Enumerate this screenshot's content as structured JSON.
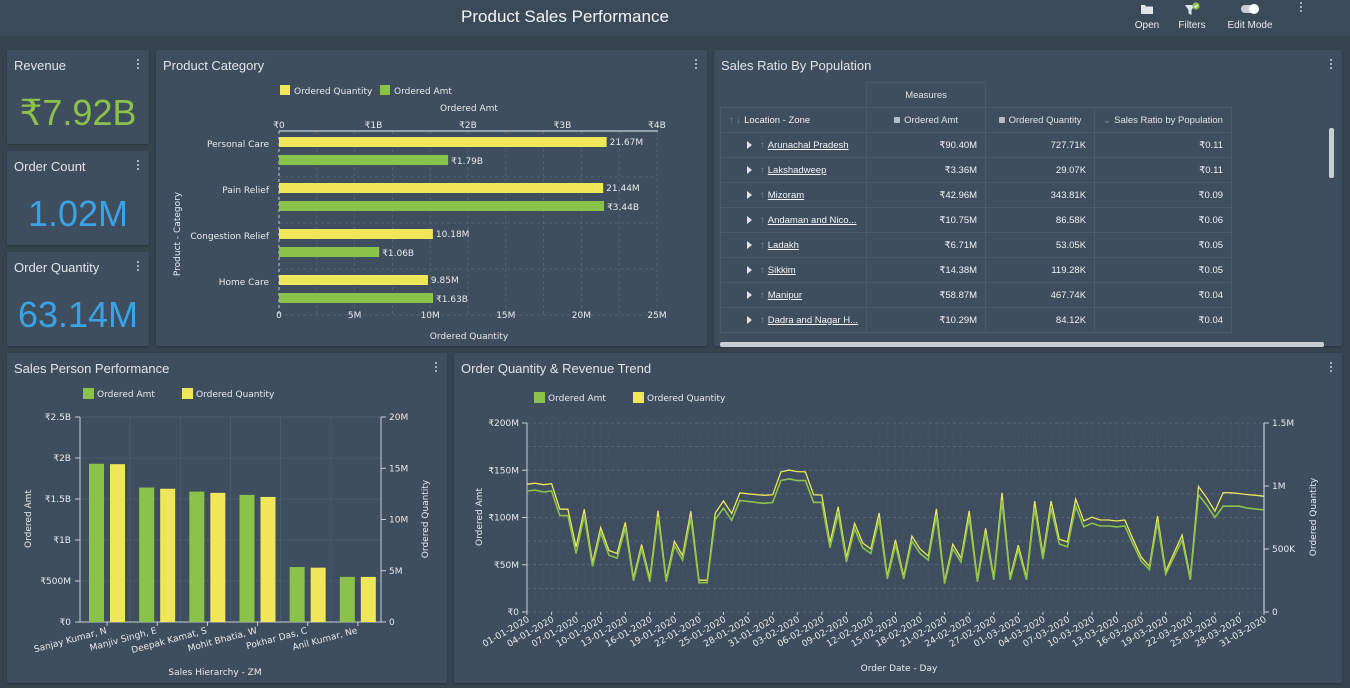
{
  "app": {
    "title": "Product Sales Performance",
    "toolbar": {
      "open_label": "Open",
      "filters_label": "Filters",
      "edit_mode_label": "Edit Mode",
      "edit_mode_on": true
    }
  },
  "colors": {
    "green": "#8bc34a",
    "yellow": "#f0e65a",
    "kpi_green": "#8bc34a",
    "kpi_blue": "#3aa3e6"
  },
  "kpis": [
    {
      "title": "Revenue",
      "value": "₹7.92B",
      "color": "green"
    },
    {
      "title": "Order Count",
      "value": "1.02M",
      "color": "blue"
    },
    {
      "title": "Order Quantity",
      "value": "63.14M",
      "color": "blue"
    }
  ],
  "product_category": {
    "title": "Product Category",
    "legend": [
      "Ordered Quantity",
      "Ordered Amt"
    ],
    "top_axis_title": "Ordered Amt",
    "top_ticks": [
      "₹0",
      "₹1B",
      "₹2B",
      "₹3B",
      "₹4B"
    ],
    "bottom_axis_title": "Ordered Quantity",
    "bottom_ticks": [
      "0",
      "5M",
      "10M",
      "15M",
      "20M",
      "25M"
    ],
    "y_axis_title": "Product - Category"
  },
  "sales_ratio": {
    "title": "Sales Ratio By Population",
    "measures_label": "Measures",
    "columns": [
      "Location - Zone",
      "Ordered Amt",
      "Ordered Quantity",
      "Sales Ratio by Population"
    ],
    "rows": [
      {
        "zone": "Arunachal Pradesh",
        "amt": "₹90.40M",
        "qty": "727.71K",
        "ratio": "₹0.11"
      },
      {
        "zone": "Lakshadweep",
        "amt": "₹3.36M",
        "qty": "29.07K",
        "ratio": "₹0.11"
      },
      {
        "zone": "Mizoram",
        "amt": "₹42.96M",
        "qty": "343.81K",
        "ratio": "₹0.09"
      },
      {
        "zone": "Andaman and Nico...",
        "amt": "₹10.75M",
        "qty": "86.58K",
        "ratio": "₹0.06"
      },
      {
        "zone": "Ladakh",
        "amt": "₹6.71M",
        "qty": "53.05K",
        "ratio": "₹0.05"
      },
      {
        "zone": "Sikkim",
        "amt": "₹14.38M",
        "qty": "119.28K",
        "ratio": "₹0.05"
      },
      {
        "zone": "Manipur",
        "amt": "₹58.87M",
        "qty": "467.74K",
        "ratio": "₹0.04"
      },
      {
        "zone": "Dadra and Nagar H...",
        "amt": "₹10.29M",
        "qty": "84.12K",
        "ratio": "₹0.04"
      }
    ]
  },
  "sales_person": {
    "title": "Sales Person Performance",
    "legend": [
      "Ordered Amt",
      "Ordered Quantity"
    ],
    "left_ticks": [
      "₹0",
      "₹500M",
      "₹1B",
      "₹1.5B",
      "₹2B",
      "₹2.5B"
    ],
    "right_ticks": [
      "0",
      "5M",
      "10M",
      "15M",
      "20M"
    ],
    "left_axis_title": "Ordered Amt",
    "right_axis_title": "Ordered Quantity",
    "x_axis_title": "Sales Hierarchy - ZM"
  },
  "trend": {
    "title": "Order Quantity & Revenue Trend",
    "legend": [
      "Ordered Amt",
      "Ordered Quantity"
    ],
    "left_ticks": [
      "₹0",
      "₹50M",
      "₹100M",
      "₹150M",
      "₹200M"
    ],
    "right_ticks": [
      "0",
      "500K",
      "1M",
      "1.5M"
    ],
    "left_axis_title": "Ordered Amt",
    "right_axis_title": "Ordered Quantity",
    "x_axis_title": "Order Date - Day"
  },
  "chart_data": [
    {
      "type": "bar",
      "orientation": "horizontal",
      "title": "Product Category",
      "categories": [
        "Personal Care",
        "Pain Relief",
        "Congestion Relief",
        "Home Care"
      ],
      "series": [
        {
          "name": "Ordered Quantity",
          "axis": "bottom",
          "values": [
            21670000,
            21440000,
            10180000,
            9850000
          ],
          "labels": [
            "21.67M",
            "21.44M",
            "10.18M",
            "9.85M"
          ]
        },
        {
          "name": "Ordered Amt",
          "axis": "top",
          "values": [
            1790000000,
            3440000000,
            1060000000,
            1630000000
          ],
          "labels": [
            "₹1.79B",
            "₹3.44B",
            "₹1.06B",
            "₹1.63B"
          ]
        }
      ],
      "xlim_bottom": [
        0,
        25000000
      ],
      "xlim_top": [
        0,
        4000000000
      ],
      "xlabel": "Ordered Quantity",
      "xlabel_top": "Ordered Amt",
      "ylabel": "Product - Category",
      "legend": "top",
      "grid": true
    },
    {
      "type": "bar",
      "title": "Sales Person Performance",
      "categories": [
        "Sanjay Kumar, N",
        "Manjiv Singh, E",
        "Deepak Kamat, S",
        "Mohit Bhatia, W",
        "Pokhar Das, C",
        "Anil Kumar, Ne"
      ],
      "series": [
        {
          "name": "Ordered Amt",
          "axis": "left",
          "values": [
            1930000000,
            1640000000,
            1590000000,
            1550000000,
            670000000,
            550000000
          ]
        },
        {
          "name": "Ordered Quantity",
          "axis": "right",
          "values": [
            15400000,
            13000000,
            12600000,
            12200000,
            5300000,
            4400000
          ]
        }
      ],
      "ylim_left": [
        0,
        2500000000
      ],
      "ylim_right": [
        0,
        20000000
      ],
      "xlabel": "Sales Hierarchy - ZM",
      "ylabel": "Ordered Amt",
      "ylabel_right": "Ordered Quantity",
      "legend": "top",
      "grid": true
    },
    {
      "type": "line",
      "title": "Order Quantity & Revenue Trend",
      "x_start": "01-01-2020",
      "x_end": "31-03-2020",
      "x_tick_labels": [
        "01-01-2020",
        "04-01-2020",
        "07-01-2020",
        "10-01-2020",
        "13-01-2020",
        "16-01-2020",
        "19-01-2020",
        "22-01-2020",
        "25-01-2020",
        "28-01-2020",
        "31-01-2020",
        "03-02-2020",
        "06-02-2020",
        "09-02-2020",
        "12-02-2020",
        "15-02-2020",
        "18-02-2020",
        "21-02-2020",
        "24-02-2020",
        "27-02-2020",
        "01-03-2020",
        "04-03-2020",
        "07-03-2020",
        "10-03-2020",
        "13-03-2020",
        "16-03-2020",
        "19-03-2020",
        "22-03-2020",
        "25-03-2020",
        "28-03-2020",
        "31-03-2020"
      ],
      "series": [
        {
          "name": "Ordered Amt",
          "axis": "left",
          "unit": "M",
          "values": [
            128,
            129,
            127,
            128,
            102,
            102,
            62,
            102,
            48,
            84,
            60,
            57,
            89,
            33,
            67,
            32,
            101,
            32,
            70,
            55,
            100,
            31,
            31,
            98,
            110,
            97,
            118,
            117,
            116,
            115,
            116,
            139,
            141,
            139,
            139,
            116,
            116,
            68,
            104,
            53,
            88,
            68,
            62,
            98,
            35,
            71,
            35,
            75,
            62,
            55,
            102,
            30,
            67,
            53,
            100,
            32,
            83,
            34,
            118,
            34,
            66,
            34,
            110,
            56,
            110,
            72,
            69,
            112,
            90,
            94,
            91,
            91,
            90,
            91,
            72,
            54,
            45,
            95,
            40,
            58,
            76,
            34,
            124,
            113,
            100,
            112,
            112,
            112,
            110,
            109,
            108
          ],
          "values_note": "Ordered Amt in ₹ millions, daily, estimated"
        },
        {
          "name": "Ordered Quantity",
          "axis": "right",
          "unit": "K",
          "values": [
            1014,
            1022,
            1010,
            1018,
            816,
            816,
            516,
            816,
            392,
            670,
            488,
            464,
            712,
            268,
            536,
            264,
            804,
            260,
            560,
            448,
            800,
            252,
            252,
            786,
            882,
            782,
            946,
            938,
            932,
            926,
            930,
            1112,
            1126,
            1114,
            1112,
            930,
            928,
            550,
            834,
            432,
            704,
            548,
            500,
            786,
            282,
            572,
            282,
            602,
            500,
            444,
            818,
            244,
            538,
            428,
            802,
            260,
            664,
            276,
            946,
            274,
            530,
            274,
            880,
            452,
            880,
            578,
            556,
            896,
            722,
            752,
            730,
            730,
            722,
            730,
            578,
            436,
            362,
            762,
            322,
            466,
            610,
            274,
            996,
            906,
            800,
            948,
            946,
            940,
            932,
            926,
            918
          ],
          "values_note": "Ordered Quantity in thousands, daily, estimated"
        }
      ],
      "ylim_left": [
        0,
        200000000
      ],
      "ylim_right": [
        0,
        1500000
      ],
      "xlabel": "Order Date - Day",
      "ylabel": "Ordered Amt",
      "ylabel_right": "Ordered Quantity",
      "legend": "top-left",
      "grid": true
    }
  ]
}
